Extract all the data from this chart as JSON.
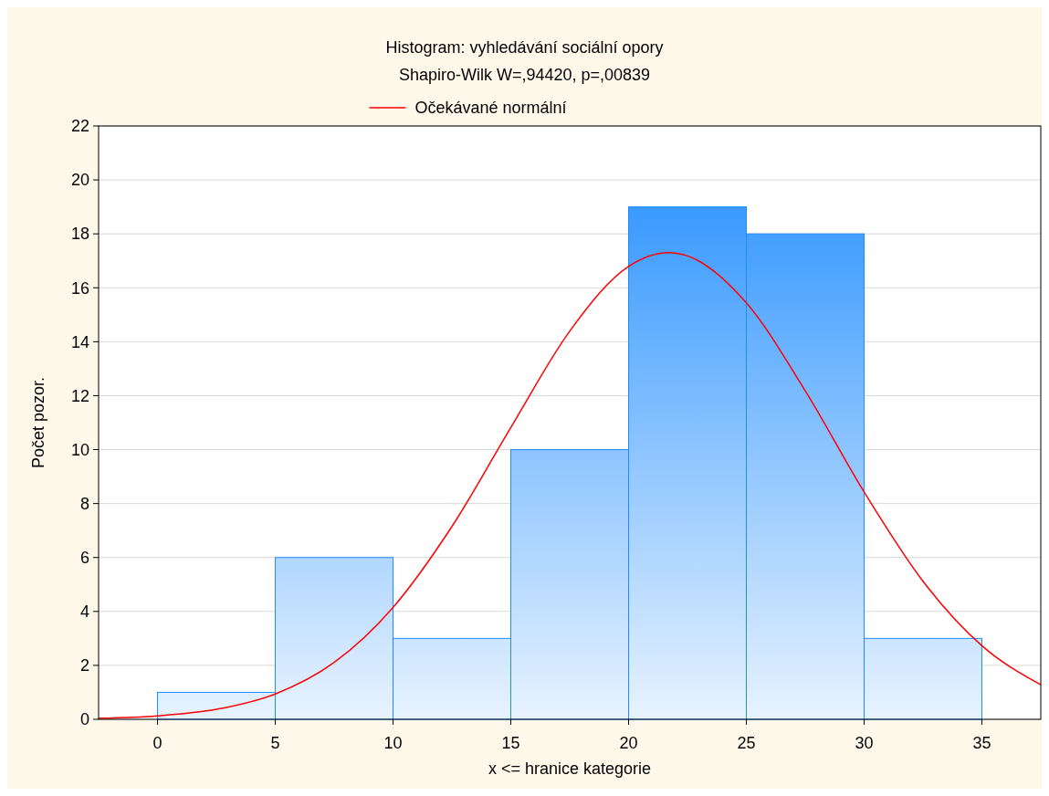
{
  "chart_data": {
    "type": "histogram",
    "title": "Histogram: vyhledávání sociální opory",
    "subtitle": "Shapiro-Wilk W=,94420, p=,00839",
    "xlabel": "x <= hranice kategorie",
    "ylabel": "Počet pozor.",
    "bins": [
      0,
      5,
      10,
      15,
      20,
      25,
      30,
      35
    ],
    "values": [
      1,
      6,
      3,
      10,
      19,
      18,
      3
    ],
    "color": "#1e8cff",
    "series": [
      {
        "type": "line",
        "name": "Očekávané normální",
        "color": "#ff0000",
        "x": [
          -2.5,
          0,
          2.5,
          5,
          7.5,
          10,
          12.5,
          15,
          17.5,
          20,
          21.7,
          22.5,
          25,
          27.5,
          30,
          32.5,
          35,
          37.5
        ],
        "values": [
          0.04,
          0.13,
          0.37,
          0.94,
          2.11,
          4.15,
          7.15,
          10.82,
          14.39,
          16.79,
          17.3,
          17.18,
          15.44,
          12.18,
          8.43,
          5.12,
          2.73,
          1.28
        ]
      }
    ],
    "xlim": [
      -2.5,
      37.5
    ],
    "xticks": [
      0,
      5,
      10,
      15,
      20,
      25,
      30,
      35
    ],
    "ylim": [
      0,
      22
    ],
    "yticks": [
      0,
      2,
      4,
      6,
      8,
      10,
      12,
      14,
      16,
      18,
      20,
      22
    ],
    "grid": "y",
    "legend": "top"
  }
}
